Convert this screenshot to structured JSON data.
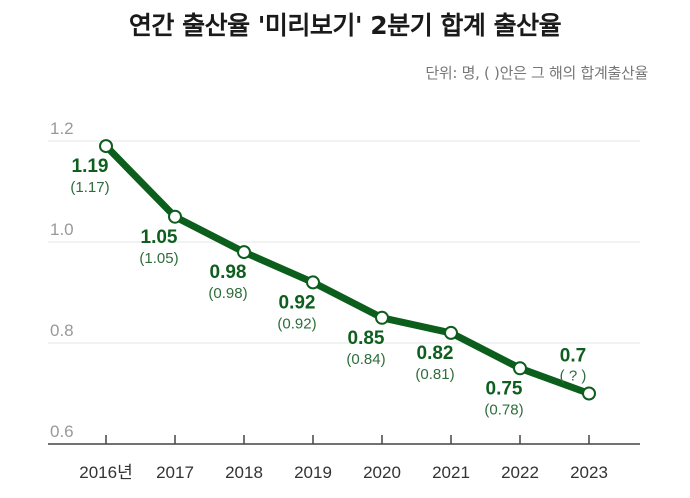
{
  "chart_data": {
    "type": "line",
    "title": "연간 출산율 '미리보기' 2분기 합계 출산율",
    "subtitle": "단위: 명, ( )안은 그 해의 합계출산율",
    "categories": [
      "2016년",
      "2017",
      "2018",
      "2019",
      "2020",
      "2021",
      "2022",
      "2023"
    ],
    "series": [
      {
        "values": [
          1.19,
          1.05,
          0.98,
          0.92,
          0.85,
          0.82,
          0.75,
          0.7
        ],
        "labels": [
          "1.19",
          "1.05",
          "0.98",
          "0.92",
          "0.85",
          "0.82",
          "0.75",
          "0.7"
        ],
        "annual_labels": [
          "(1.17)",
          "(1.05)",
          "(0.98)",
          "(0.92)",
          "(0.84)",
          "(0.81)",
          "(0.78)",
          "( ? )"
        ]
      }
    ],
    "yticks": [
      "1.2",
      "1.0",
      "0.8",
      "0.6"
    ],
    "ylim": [
      0.6,
      1.2
    ],
    "grid": true,
    "colors": {
      "line": "#0b5e1c",
      "marker_fill": "#ffffff",
      "value_label": "#0e5e1e",
      "annual_label": "#2c6e3a",
      "grid": "#e4e4e4"
    }
  }
}
